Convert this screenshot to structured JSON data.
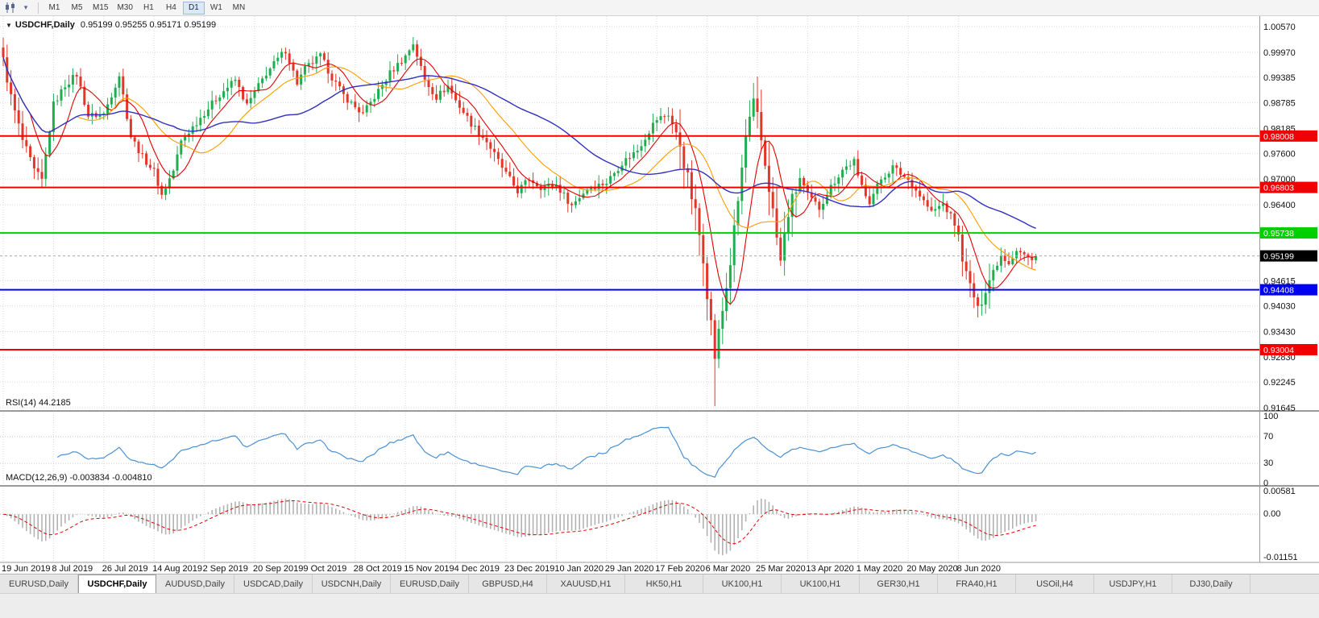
{
  "icons": {
    "title_caret": "▼",
    "toolbar_caret": "▾"
  },
  "toolbar": {
    "timeframes": [
      "M1",
      "M5",
      "M15",
      "M30",
      "H1",
      "H4",
      "D1",
      "W1",
      "MN"
    ],
    "active_timeframe": "D1"
  },
  "chart": {
    "title": "USDCHF,Daily",
    "ohlc": "0.95199 0.95255 0.95171 0.95199",
    "price_axis_labels": [
      {
        "value": 1.0057,
        "text": "1.00570"
      },
      {
        "value": 0.9997,
        "text": "0.99970"
      },
      {
        "value": 0.99385,
        "text": "0.99385"
      },
      {
        "value": 0.98785,
        "text": "0.98785"
      },
      {
        "value": 0.98185,
        "text": "0.98185"
      },
      {
        "value": 0.976,
        "text": "0.97600"
      },
      {
        "value": 0.97,
        "text": "0.97000"
      },
      {
        "value": 0.964,
        "text": "0.96400"
      },
      {
        "value": 0.94615,
        "text": "0.94615"
      },
      {
        "value": 0.9403,
        "text": "0.94030"
      },
      {
        "value": 0.9343,
        "text": "0.93430"
      },
      {
        "value": 0.9283,
        "text": "0.92830"
      },
      {
        "value": 0.92245,
        "text": "0.92245"
      },
      {
        "value": 0.91645,
        "text": "0.91645"
      }
    ],
    "hlines": [
      {
        "value": 0.98008,
        "text": "0.98008",
        "color": "#f00000"
      },
      {
        "value": 0.96803,
        "text": "0.96803",
        "color": "#f00000"
      },
      {
        "value": 0.95738,
        "text": "0.95738",
        "color": "#00cf00"
      },
      {
        "value": 0.94408,
        "text": "0.94408",
        "color": "#0000f0"
      },
      {
        "value": 0.93004,
        "text": "0.93004",
        "color": "#f00000"
      }
    ],
    "current_price": {
      "value": 0.95199,
      "text": "0.95199",
      "color": "#000000"
    },
    "date_ticks": [
      {
        "bar": 0,
        "text": "19 Jun 2019"
      },
      {
        "bar": 13,
        "text": "8 Jul 2019"
      },
      {
        "bar": 26,
        "text": "26 Jul 2019"
      },
      {
        "bar": 39,
        "text": "14 Aug 2019"
      },
      {
        "bar": 52,
        "text": "2 Sep 2019"
      },
      {
        "bar": 65,
        "text": "20 Sep 2019"
      },
      {
        "bar": 78,
        "text": "9 Oct 2019"
      },
      {
        "bar": 91,
        "text": "28 Oct 2019"
      },
      {
        "bar": 104,
        "text": "15 Nov 2019"
      },
      {
        "bar": 117,
        "text": "4 Dec 2019"
      },
      {
        "bar": 130,
        "text": "23 Dec 2019"
      },
      {
        "bar": 143,
        "text": "10 Jan 2020"
      },
      {
        "bar": 156,
        "text": "29 Jan 2020"
      },
      {
        "bar": 169,
        "text": "17 Feb 2020"
      },
      {
        "bar": 182,
        "text": "6 Mar 2020"
      },
      {
        "bar": 195,
        "text": "25 Mar 2020"
      },
      {
        "bar": 208,
        "text": "13 Apr 2020"
      },
      {
        "bar": 221,
        "text": "1 May 2020"
      },
      {
        "bar": 234,
        "text": "20 May 2020"
      },
      {
        "bar": 247,
        "text": "8 Jun 2020"
      }
    ]
  },
  "chart_data": {
    "type": "candlestick",
    "symbol": "USDCHF",
    "timeframe": "Daily",
    "bars": 268,
    "first_open": 1.0008,
    "last_close": 0.95199,
    "visible_price_range": [
      0.91645,
      1.0057
    ],
    "close_waypoints": [
      [
        0,
        0.9978
      ],
      [
        2,
        0.9892
      ],
      [
        5,
        0.979
      ],
      [
        8,
        0.9718
      ],
      [
        10,
        0.9695
      ],
      [
        13,
        0.9875
      ],
      [
        16,
        0.992
      ],
      [
        19,
        0.9945
      ],
      [
        22,
        0.9848
      ],
      [
        26,
        0.9852
      ],
      [
        30,
        0.9944
      ],
      [
        33,
        0.98
      ],
      [
        36,
        0.9752
      ],
      [
        39,
        0.9718
      ],
      [
        41,
        0.9662
      ],
      [
        44,
        0.972
      ],
      [
        46,
        0.9788
      ],
      [
        49,
        0.9822
      ],
      [
        52,
        0.9855
      ],
      [
        56,
        0.9898
      ],
      [
        60,
        0.9932
      ],
      [
        63,
        0.9872
      ],
      [
        65,
        0.9903
      ],
      [
        68,
        0.9948
      ],
      [
        73,
        1.0002
      ],
      [
        76,
        0.9925
      ],
      [
        78,
        0.9958
      ],
      [
        82,
        0.9988
      ],
      [
        85,
        0.9938
      ],
      [
        88,
        0.9896
      ],
      [
        91,
        0.9868
      ],
      [
        93,
        0.9852
      ],
      [
        97,
        0.9906
      ],
      [
        100,
        0.9948
      ],
      [
        104,
        0.9988
      ],
      [
        106,
        1.0018
      ],
      [
        109,
        0.9932
      ],
      [
        112,
        0.9892
      ],
      [
        115,
        0.9918
      ],
      [
        117,
        0.9884
      ],
      [
        121,
        0.983
      ],
      [
        125,
        0.9788
      ],
      [
        128,
        0.9742
      ],
      [
        130,
        0.9712
      ],
      [
        133,
        0.9672
      ],
      [
        136,
        0.97
      ],
      [
        139,
        0.9682
      ],
      [
        143,
        0.9686
      ],
      [
        147,
        0.9638
      ],
      [
        151,
        0.9678
      ],
      [
        156,
        0.9692
      ],
      [
        160,
        0.9738
      ],
      [
        164,
        0.9768
      ],
      [
        168,
        0.9828
      ],
      [
        169,
        0.984
      ],
      [
        172,
        0.9852
      ],
      [
        175,
        0.9782
      ],
      [
        177,
        0.97
      ],
      [
        179,
        0.9618
      ],
      [
        181,
        0.952
      ],
      [
        182,
        0.9438
      ],
      [
        184,
        0.9285
      ],
      [
        186,
        0.9392
      ],
      [
        188,
        0.9505
      ],
      [
        190,
        0.9648
      ],
      [
        192,
        0.9798
      ],
      [
        194,
        0.9872
      ],
      [
        195,
        0.9842
      ],
      [
        198,
        0.9682
      ],
      [
        200,
        0.9562
      ],
      [
        201,
        0.9505
      ],
      [
        203,
        0.9622
      ],
      [
        206,
        0.9702
      ],
      [
        208,
        0.9662
      ],
      [
        211,
        0.9632
      ],
      [
        214,
        0.9682
      ],
      [
        217,
        0.9722
      ],
      [
        220,
        0.9742
      ],
      [
        221,
        0.9702
      ],
      [
        224,
        0.9648
      ],
      [
        227,
        0.97
      ],
      [
        230,
        0.9728
      ],
      [
        234,
        0.9698
      ],
      [
        237,
        0.9662
      ],
      [
        240,
        0.9622
      ],
      [
        243,
        0.9642
      ],
      [
        246,
        0.9598
      ],
      [
        247,
        0.9562
      ],
      [
        249,
        0.9475
      ],
      [
        251,
        0.9425
      ],
      [
        252,
        0.939
      ],
      [
        254,
        0.9445
      ],
      [
        256,
        0.9485
      ],
      [
        258,
        0.9522
      ],
      [
        260,
        0.9505
      ],
      [
        262,
        0.9535
      ],
      [
        264,
        0.9522
      ],
      [
        266,
        0.9508
      ],
      [
        267,
        0.95199
      ]
    ],
    "spike_lows": [
      {
        "bar": 184,
        "price": 0.9168
      },
      {
        "bar": 252,
        "price": 0.9376
      }
    ],
    "moving_averages": [
      {
        "period": 8,
        "color": "#e00000",
        "width": 1.1
      },
      {
        "period": 20,
        "color": "#ff9c00",
        "width": 1.1
      },
      {
        "period": 45,
        "color": "#3030c0",
        "width": 1.4
      }
    ]
  },
  "rsi": {
    "label": "RSI(14) 44.2185",
    "period": 14,
    "value": 44.2185,
    "levels": [
      100,
      70,
      30,
      0
    ],
    "color": "#4a90d2"
  },
  "macd": {
    "label": "MACD(12,26,9) -0.003834 -0.004810",
    "fast": 12,
    "slow": 26,
    "signal_period": 9,
    "main_value": -0.003834,
    "signal_value": -0.00481,
    "range": [
      -0.01151,
      0.00581
    ],
    "axis_levels": [
      {
        "value": 0.00581,
        "text": "0.00581"
      },
      {
        "value": 0,
        "text": "0.00"
      },
      {
        "value": -0.01151,
        "text": "-0.01151"
      }
    ]
  },
  "tabs": [
    {
      "label": "EURUSD,Daily",
      "active": false
    },
    {
      "label": "USDCHF,Daily",
      "active": true
    },
    {
      "label": "AUDUSD,Daily",
      "active": false
    },
    {
      "label": "USDCAD,Daily",
      "active": false
    },
    {
      "label": "USDCNH,Daily",
      "active": false
    },
    {
      "label": "EURUSD,Daily",
      "active": false
    },
    {
      "label": "GBPUSD,H4",
      "active": false
    },
    {
      "label": "XAUUSD,H1",
      "active": false
    },
    {
      "label": "HK50,H1",
      "active": false
    },
    {
      "label": "UK100,H1",
      "active": false
    },
    {
      "label": "UK100,H1",
      "active": false
    },
    {
      "label": "GER30,H1",
      "active": false
    },
    {
      "label": "FRA40,H1",
      "active": false
    },
    {
      "label": "USOil,H4",
      "active": false
    },
    {
      "label": "USDJPY,H1",
      "active": false
    },
    {
      "label": "DJ30,Daily",
      "active": false
    }
  ],
  "colors": {
    "background": "#ffffff",
    "grid": "#dadada",
    "level_grid": "#c6c6c6",
    "candle_up": "#1fae4f",
    "candle_down": "#e3362a",
    "axis_text": "#111111",
    "macd_hist": "#b2b2b2",
    "macd_signal": "#e00000",
    "separator": "#9a9a9a",
    "current_price_line": "#aaaaaa"
  }
}
